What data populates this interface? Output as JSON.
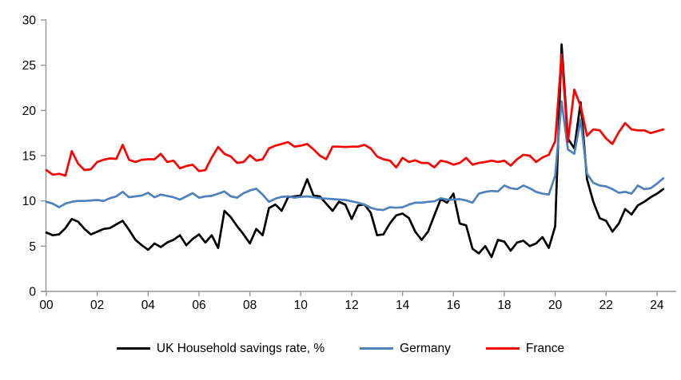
{
  "chart": {
    "background": "#ffffff",
    "axis_color": "#969696",
    "tick_label_color": "#000000"
  },
  "chart_data": {
    "type": "line",
    "title": "",
    "xlabel": "",
    "ylabel": "",
    "x_start": "2000Q1",
    "frequency": "quarterly",
    "x_tick_labels": [
      "00",
      "02",
      "04",
      "06",
      "08",
      "10",
      "12",
      "14",
      "16",
      "18",
      "20",
      "22",
      "24"
    ],
    "x_tick_years": [
      2000,
      2002,
      2004,
      2006,
      2008,
      2010,
      2012,
      2014,
      2016,
      2018,
      2020,
      2022,
      2024
    ],
    "y_ticks": [
      0,
      5,
      10,
      15,
      20,
      25,
      30
    ],
    "ylim": [
      0,
      30
    ],
    "grid": false,
    "legend_position": "bottom",
    "series": [
      {
        "name": "UK Household savings rate, %",
        "color": "#000000",
        "values": [
          6.5,
          6.2,
          6.3,
          7.0,
          8.0,
          7.7,
          6.9,
          6.3,
          6.6,
          6.9,
          7.0,
          7.4,
          7.8,
          6.8,
          5.7,
          5.1,
          4.6,
          5.3,
          4.9,
          5.4,
          5.7,
          6.2,
          5.1,
          5.8,
          6.3,
          5.4,
          6.2,
          4.8,
          8.9,
          8.2,
          7.2,
          6.3,
          5.3,
          6.9,
          6.2,
          9.2,
          9.6,
          8.9,
          10.4,
          10.5,
          10.6,
          12.4,
          10.6,
          10.5,
          9.7,
          8.9,
          9.9,
          9.6,
          8.0,
          9.5,
          9.6,
          8.7,
          6.2,
          6.3,
          7.5,
          8.4,
          8.6,
          8.1,
          6.6,
          5.7,
          6.6,
          8.4,
          10.2,
          9.8,
          10.8,
          7.5,
          7.3,
          4.7,
          4.2,
          5.0,
          3.8,
          5.7,
          5.5,
          4.5,
          5.4,
          5.6,
          5.0,
          5.3,
          6.0,
          4.8,
          7.2,
          27.3,
          16.9,
          15.8,
          20.9,
          12.4,
          9.9,
          8.1,
          7.8,
          6.6,
          7.5,
          9.1,
          8.5,
          9.5,
          9.9,
          10.4,
          10.8,
          11.3
        ]
      },
      {
        "name": "Germany",
        "color": "#4F81BD",
        "values": [
          9.9,
          9.7,
          9.3,
          9.7,
          9.9,
          10.0,
          10.0,
          10.05,
          10.1,
          10.0,
          10.3,
          10.5,
          11.0,
          10.4,
          10.5,
          10.6,
          10.9,
          10.4,
          10.7,
          10.55,
          10.4,
          10.15,
          10.5,
          10.85,
          10.35,
          10.5,
          10.55,
          10.8,
          11.05,
          10.5,
          10.35,
          10.85,
          11.15,
          11.35,
          10.7,
          9.9,
          10.25,
          10.45,
          10.5,
          10.35,
          10.45,
          10.5,
          10.4,
          10.3,
          10.25,
          10.2,
          10.15,
          10.1,
          9.95,
          9.8,
          9.6,
          9.25,
          9.05,
          9.0,
          9.3,
          9.25,
          9.3,
          9.6,
          9.8,
          9.8,
          9.9,
          9.95,
          10.3,
          10.15,
          10.15,
          10.2,
          10.05,
          9.8,
          10.8,
          11.0,
          11.1,
          11.05,
          11.7,
          11.4,
          11.3,
          11.7,
          11.4,
          11.0,
          10.8,
          10.7,
          12.8,
          21.0,
          15.7,
          15.2,
          19.0,
          13.0,
          12.0,
          11.7,
          11.6,
          11.3,
          10.9,
          11.0,
          10.8,
          11.7,
          11.3,
          11.4,
          11.9,
          12.5
        ]
      },
      {
        "name": "France",
        "color": "#FF0000",
        "values": [
          13.4,
          12.9,
          13.0,
          12.8,
          15.5,
          14.1,
          13.4,
          13.5,
          14.3,
          14.55,
          14.7,
          14.65,
          16.2,
          14.55,
          14.3,
          14.55,
          14.6,
          14.6,
          15.2,
          14.3,
          14.45,
          13.6,
          13.85,
          14.0,
          13.3,
          13.4,
          14.8,
          15.95,
          15.2,
          14.9,
          14.2,
          14.3,
          15.05,
          14.45,
          14.6,
          15.8,
          16.1,
          16.3,
          16.5,
          16.0,
          16.1,
          16.3,
          15.7,
          15.0,
          14.6,
          16.0,
          16.0,
          15.95,
          16.0,
          16.0,
          16.2,
          15.8,
          14.9,
          14.6,
          14.45,
          13.7,
          14.75,
          14.3,
          14.5,
          14.2,
          14.2,
          13.7,
          14.45,
          14.3,
          14.0,
          14.2,
          14.75,
          14.0,
          14.2,
          14.3,
          14.45,
          14.3,
          14.45,
          13.9,
          14.6,
          15.1,
          15.0,
          14.3,
          14.8,
          15.1,
          16.6,
          26.2,
          16.5,
          22.3,
          20.5,
          17.2,
          17.9,
          17.8,
          16.9,
          16.3,
          17.6,
          18.6,
          17.9,
          17.8,
          17.8,
          17.5,
          17.7,
          17.9
        ]
      }
    ]
  },
  "legend": {
    "items": [
      {
        "label": "UK Household savings rate, %"
      },
      {
        "label": "Germany"
      },
      {
        "label": "France"
      }
    ]
  }
}
